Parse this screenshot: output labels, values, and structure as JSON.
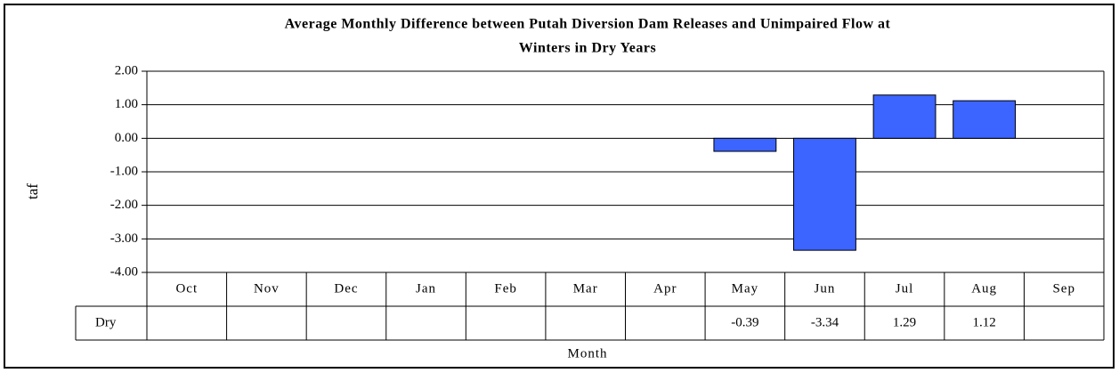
{
  "chart_data": {
    "type": "bar",
    "title": [
      "Average Monthly Difference between Putah Diversion Dam Releases and Unimpaired Flow at",
      "Winters in Dry Years"
    ],
    "y_label": "taf",
    "x_label": "Month",
    "categories": [
      "Oct",
      "Nov",
      "Dec",
      "Jan",
      "Feb",
      "Mar",
      "Apr",
      "May",
      "Jun",
      "Jul",
      "Aug",
      "Sep"
    ],
    "series": [
      {
        "name": "Dry",
        "color": "#3c64ff",
        "values": [
          null,
          null,
          null,
          null,
          null,
          null,
          null,
          -0.39,
          -3.34,
          1.29,
          1.12,
          null
        ]
      }
    ],
    "ylim": [
      -4,
      2
    ],
    "yticks": [
      {
        "value": 2,
        "label": "2.00"
      },
      {
        "value": 1,
        "label": "1.00"
      },
      {
        "value": 0,
        "label": "0.00"
      },
      {
        "value": -1,
        "label": "-1.00"
      },
      {
        "value": -2,
        "label": "-2.00"
      },
      {
        "value": -3,
        "label": "-3.00"
      },
      {
        "value": -4,
        "label": "-4.00"
      }
    ],
    "grid": true
  }
}
